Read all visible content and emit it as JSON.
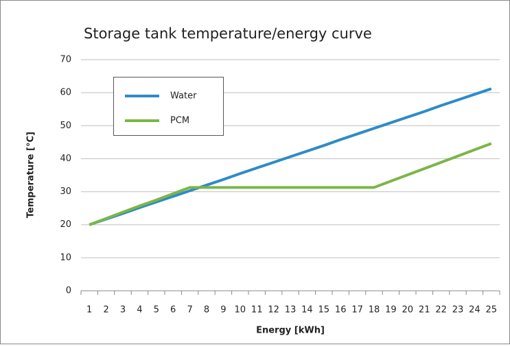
{
  "chart_data": {
    "type": "line",
    "title": "Storage tank temperature/energy curve",
    "x_label": "Energy [kWh]",
    "y_label": "Temperature [°C]",
    "categories": [
      1,
      2,
      3,
      4,
      5,
      6,
      7,
      8,
      9,
      10,
      11,
      12,
      13,
      14,
      15,
      16,
      17,
      18,
      19,
      20,
      21,
      22,
      23,
      24,
      25
    ],
    "series": [
      {
        "name": "Water",
        "color": "#2e8bc6",
        "values": [
          20,
          21.7,
          23.4,
          25.2,
          26.9,
          28.6,
          30.3,
          32.0,
          33.7,
          35.5,
          37.2,
          38.9,
          40.6,
          42.3,
          44.0,
          45.8,
          47.5,
          49.2,
          50.9,
          52.6,
          54.3,
          56.1,
          57.8,
          59.5,
          61.2
        ]
      },
      {
        "name": "PCM",
        "color": "#7ab648",
        "values": [
          20,
          21.9,
          23.8,
          25.7,
          27.5,
          29.4,
          31.3,
          31.3,
          31.3,
          31.3,
          31.3,
          31.3,
          31.3,
          31.3,
          31.3,
          31.3,
          31.3,
          31.3,
          33.2,
          35.1,
          37.0,
          38.9,
          40.8,
          42.7,
          44.6
        ]
      }
    ],
    "ylim": [
      0,
      70
    ],
    "yticks": [
      0,
      10,
      20,
      30,
      40,
      50,
      60,
      70
    ],
    "grid": true
  }
}
